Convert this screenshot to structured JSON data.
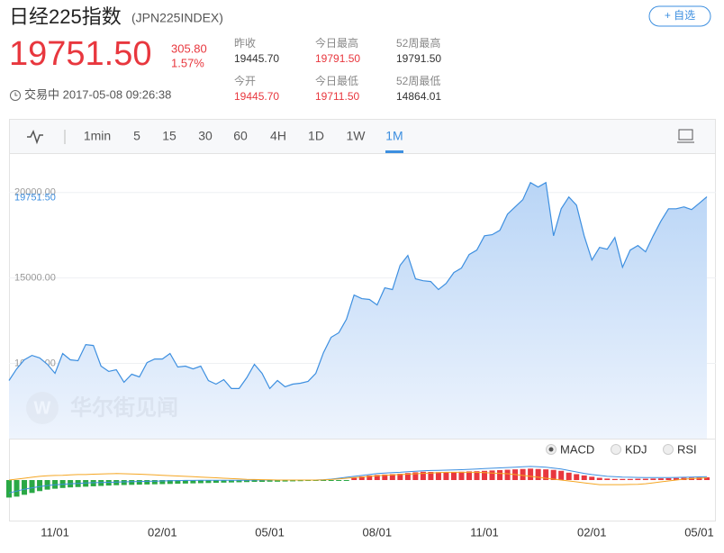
{
  "header": {
    "name": "日经225指数",
    "code": "(JPN225INDEX)",
    "watch_button": "+ 自选",
    "price": "19751.50",
    "change": "305.80",
    "change_pct": "1.57%",
    "status": "交易中 2017-05-08 09:26:38",
    "stats": [
      {
        "label": "昨收",
        "value": "19445.70"
      },
      {
        "label": "今开",
        "value": "19445.70"
      },
      {
        "label": "今日最高",
        "value": "19791.50"
      },
      {
        "label": "今日最低",
        "value": "19711.50"
      },
      {
        "label": "52周最高",
        "value": "19791.50"
      },
      {
        "label": "52周最低",
        "value": "14864.01"
      }
    ]
  },
  "tabs": {
    "items": [
      "1min",
      "5",
      "15",
      "30",
      "60",
      "4H",
      "1D",
      "1W",
      "1M"
    ],
    "active": 8
  },
  "watermark": "华尔街见闻",
  "chart_data": [
    {
      "type": "area",
      "color": "#3d8fe0",
      "grid": true,
      "x": [
        null,
        null,
        null,
        null,
        null,
        null,
        "11/01",
        null,
        null,
        null,
        null,
        null,
        null,
        null,
        null,
        null,
        null,
        null,
        null,
        null,
        "02/01",
        null,
        null,
        null,
        null,
        null,
        null,
        null,
        null,
        null,
        null,
        null,
        null,
        null,
        "05/01",
        null,
        null,
        null,
        null,
        null,
        null,
        null,
        null,
        null,
        null,
        null,
        null,
        null,
        "08/01",
        null,
        null,
        null,
        null,
        null,
        null,
        null,
        null,
        null,
        null,
        null,
        null,
        null,
        "11/01",
        null,
        null,
        null,
        null,
        null,
        null,
        null,
        null,
        null,
        null,
        null,
        null,
        null,
        "02/01",
        null,
        null,
        null,
        null,
        null,
        null,
        null,
        null,
        null,
        null,
        null,
        null,
        null,
        "05/01",
        null
      ],
      "values": [
        9000,
        9680,
        10210,
        10470,
        10320,
        9950,
        9420,
        10580,
        10210,
        10160,
        11100,
        11050,
        9840,
        9530,
        9630,
        8900,
        9370,
        9210,
        10050,
        10260,
        10260,
        10580,
        9790,
        9840,
        9680,
        9840,
        9000,
        8790,
        9050,
        8530,
        8530,
        9160,
        9950,
        9420,
        8530,
        9000,
        8630,
        8790,
        8840,
        8950,
        9420,
        10630,
        11530,
        11790,
        12580,
        14000,
        13790,
        13740,
        13420,
        14420,
        14320,
        15740,
        16320,
        14950,
        14840,
        14790,
        14320,
        14680,
        15320,
        15580,
        16370,
        16630,
        17470,
        17530,
        17790,
        18740,
        19160,
        19580,
        20580,
        20320,
        20580,
        17470,
        19050,
        19740,
        19260,
        17470,
        16050,
        16790,
        16680,
        17370,
        15630,
        16630,
        16900,
        16530,
        17470,
        18320,
        19050,
        19050,
        19160,
        19000,
        19370,
        19751.5
      ],
      "ylim": [
        5600,
        22200
      ],
      "yticks": [
        {
          "value": 10000,
          "label": "10000.00"
        },
        {
          "value": 15000,
          "label": "15000.00"
        },
        {
          "value": 20000,
          "label": "20000.00"
        }
      ],
      "last_label": {
        "value": 19751.5,
        "label": "19751.50"
      }
    },
    {
      "type": "macd",
      "legend": [
        "MACD",
        "KDJ",
        "RSI"
      ],
      "active": 0,
      "ylim": [
        -2200,
        2200
      ],
      "up_color": "#e8373e",
      "down_color": "#2aa845",
      "histogram": [
        -950,
        -900,
        -800,
        -700,
        -600,
        -520,
        -470,
        -430,
        -400,
        -380,
        -360,
        -340,
        -320,
        -300,
        -280,
        -270,
        -260,
        -250,
        -240,
        -230,
        -220,
        -210,
        -200,
        -190,
        -180,
        -170,
        -160,
        -150,
        -140,
        -130,
        -120,
        -110,
        -100,
        -100,
        -90,
        -90,
        -80,
        -70,
        -60,
        -50,
        -40,
        -30,
        -20,
        -10,
        -10,
        150,
        200,
        250,
        280,
        300,
        320,
        340,
        380,
        420,
        450,
        440,
        430,
        420,
        430,
        450,
        470,
        480,
        500,
        520,
        540,
        560,
        580,
        600,
        620,
        600,
        580,
        550,
        500,
        400,
        320,
        250,
        180,
        120,
        80,
        60,
        60,
        60,
        70,
        70,
        80,
        90,
        100,
        110,
        120,
        130,
        140,
        150
      ],
      "series": [
        {
          "color": "#3d8fe0",
          "values": [
            -700,
            -600,
            -500,
            -420,
            -350,
            -300,
            -260,
            -230,
            -200,
            -180,
            -160,
            -140,
            -130,
            -120,
            -110,
            -100,
            -90,
            -80,
            -70,
            -60,
            -50,
            -40,
            -30,
            -20,
            -20,
            -10,
            -10,
            -10,
            -10,
            -10,
            -10,
            -10,
            0,
            0,
            0,
            0,
            0,
            0,
            0,
            0,
            0,
            20,
            50,
            100,
            150,
            200,
            250,
            300,
            350,
            380,
            400,
            420,
            450,
            480,
            500,
            520,
            530,
            540,
            550,
            560,
            580,
            600,
            620,
            640,
            660,
            680,
            700,
            720,
            740,
            720,
            700,
            650,
            600,
            520,
            440,
            360,
            300,
            250,
            200,
            180,
            160,
            150,
            140,
            130,
            130,
            130,
            130,
            140,
            150,
            160,
            170,
            180
          ]
        },
        {
          "color": "#f5a623",
          "values": [
            0,
            50,
            100,
            150,
            200,
            230,
            250,
            260,
            280,
            300,
            300,
            320,
            330,
            340,
            350,
            340,
            330,
            320,
            300,
            280,
            260,
            240,
            220,
            200,
            180,
            160,
            140,
            120,
            100,
            80,
            60,
            40,
            30,
            20,
            10,
            0,
            0,
            0,
            0,
            0,
            0,
            10,
            30,
            60,
            100,
            130,
            160,
            200,
            230,
            260,
            280,
            300,
            320,
            340,
            360,
            380,
            400,
            420,
            420,
            420,
            420,
            420,
            400,
            380,
            360,
            340,
            300,
            250,
            200,
            150,
            100,
            50,
            0,
            -50,
            -100,
            -150,
            -200,
            -250,
            -250,
            -250,
            -250,
            -240,
            -230,
            -200,
            -150,
            -100,
            -50,
            0,
            50,
            80,
            100,
            120
          ]
        }
      ]
    }
  ]
}
